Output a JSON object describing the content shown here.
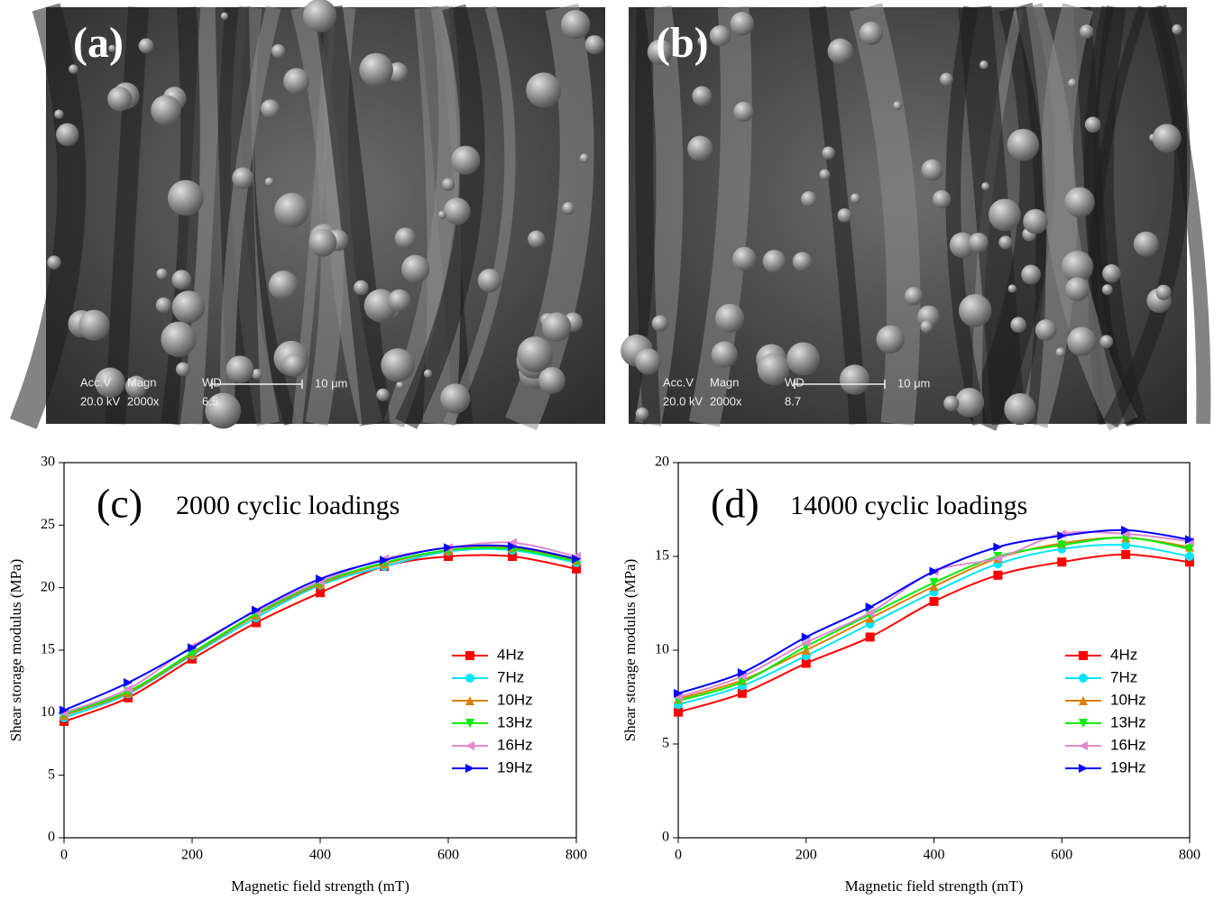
{
  "images": [
    {
      "label": "(a)",
      "info_labels": [
        "Acc.V",
        "Magn",
        "WD"
      ],
      "info_values": [
        "20.0 kV",
        "2000x",
        "6.5"
      ],
      "scale_bar": "10 μm"
    },
    {
      "label": "(b)",
      "info_labels": [
        "Acc.V",
        "Magn",
        "WD"
      ],
      "info_values": [
        "20.0 kV",
        "2000x",
        "8.7"
      ],
      "scale_bar": "10 μm"
    }
  ],
  "chart_data": [
    {
      "type": "line",
      "panel_label": "(c)",
      "title": "2000 cyclic loadings",
      "x_label": "Magnetic field strength (mT)",
      "y_label": "Shear storage modulus (MPa)",
      "x": [
        0,
        100,
        200,
        300,
        400,
        500,
        600,
        700,
        800
      ],
      "xlim": [
        0,
        800
      ],
      "xticks": [
        0,
        200,
        400,
        600,
        800
      ],
      "ylim": [
        0,
        30
      ],
      "yticks": [
        0,
        5,
        10,
        15,
        20,
        25,
        30
      ],
      "smooth": true,
      "legend": "lower-right",
      "series": [
        {
          "name": "4Hz",
          "color": "#ff0000",
          "marker": "square",
          "values": [
            9.3,
            11.2,
            14.3,
            17.2,
            19.6,
            21.7,
            22.5,
            22.5,
            21.5
          ]
        },
        {
          "name": "7Hz",
          "color": "#00e5ff",
          "marker": "circle",
          "values": [
            9.6,
            11.5,
            14.6,
            17.6,
            20.2,
            21.7,
            22.9,
            23.0,
            22.0
          ]
        },
        {
          "name": "10Hz",
          "color": "#d98000",
          "marker": "triangle-up",
          "values": [
            9.8,
            11.6,
            14.7,
            17.8,
            20.3,
            21.9,
            23.0,
            23.2,
            22.2
          ]
        },
        {
          "name": "13Hz",
          "color": "#00ee00",
          "marker": "triangle-down",
          "values": [
            9.9,
            11.7,
            14.8,
            17.9,
            20.4,
            22.0,
            23.0,
            23.1,
            22.1
          ]
        },
        {
          "name": "16Hz",
          "color": "#e08ad0",
          "marker": "triangle-left",
          "values": [
            10.0,
            11.9,
            15.3,
            18.1,
            20.5,
            22.3,
            23.2,
            23.6,
            22.5
          ]
        },
        {
          "name": "19Hz",
          "color": "#0000ff",
          "marker": "triangle-right",
          "values": [
            10.2,
            12.4,
            15.2,
            18.2,
            20.7,
            22.2,
            23.2,
            23.3,
            22.3
          ]
        }
      ]
    },
    {
      "type": "line",
      "panel_label": "(d)",
      "title": "14000 cyclic loadings",
      "x_label": "Magnetic field strength (mT)",
      "y_label": "Shear storage modulus (MPa)",
      "x": [
        0,
        100,
        200,
        300,
        400,
        500,
        600,
        700,
        800
      ],
      "xlim": [
        0,
        800
      ],
      "xticks": [
        0,
        200,
        400,
        600,
        800
      ],
      "ylim": [
        0,
        20
      ],
      "yticks": [
        0,
        5,
        10,
        15,
        20
      ],
      "smooth": true,
      "legend": "lower-right",
      "series": [
        {
          "name": "4Hz",
          "color": "#ff0000",
          "marker": "square",
          "values": [
            6.7,
            7.7,
            9.3,
            10.7,
            12.6,
            14.0,
            14.7,
            15.1,
            14.7
          ]
        },
        {
          "name": "7Hz",
          "color": "#00e5ff",
          "marker": "circle",
          "values": [
            7.1,
            8.1,
            9.7,
            11.4,
            13.1,
            14.6,
            15.4,
            15.6,
            15.0
          ]
        },
        {
          "name": "10Hz",
          "color": "#d98000",
          "marker": "triangle-up",
          "values": [
            7.4,
            8.4,
            10.0,
            11.7,
            13.4,
            14.9,
            15.7,
            16.0,
            15.5
          ]
        },
        {
          "name": "13Hz",
          "color": "#00ee00",
          "marker": "triangle-down",
          "values": [
            7.3,
            8.3,
            10.2,
            11.9,
            13.6,
            15.0,
            15.6,
            16.0,
            15.4
          ]
        },
        {
          "name": "16Hz",
          "color": "#e08ad0",
          "marker": "triangle-left",
          "values": [
            7.5,
            8.6,
            10.4,
            12.0,
            14.2,
            14.9,
            16.2,
            16.2,
            15.8
          ]
        },
        {
          "name": "19Hz",
          "color": "#0000ff",
          "marker": "triangle-right",
          "values": [
            7.7,
            8.8,
            10.7,
            12.3,
            14.2,
            15.5,
            16.1,
            16.4,
            15.9
          ]
        }
      ]
    }
  ]
}
